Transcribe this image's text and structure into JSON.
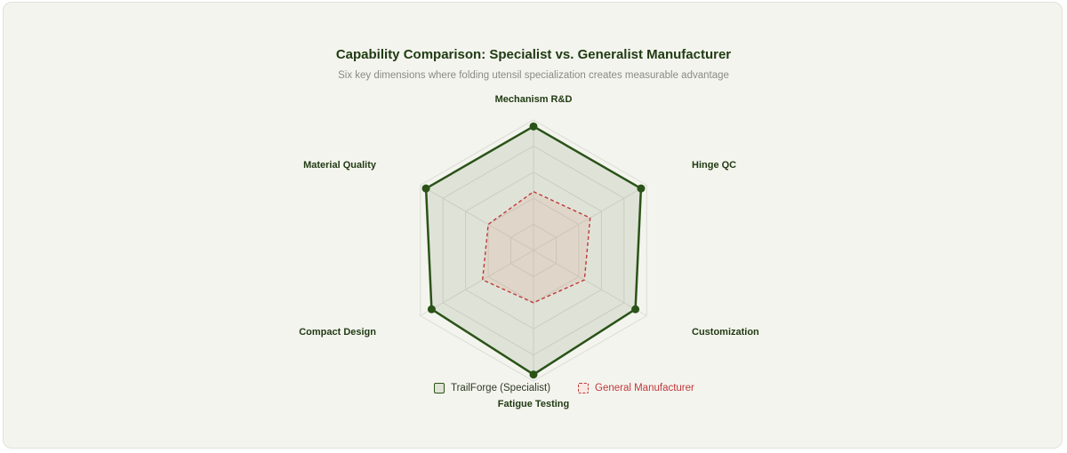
{
  "chart_data": {
    "type": "radar",
    "title": "Capability Comparison: Specialist vs. Generalist Manufacturer",
    "subtitle": "Six key dimensions where folding utensil specialization creates measurable advantage",
    "axes": [
      "Mechanism R&D",
      "Hinge QC",
      "Customization",
      "Fatigue Testing",
      "Compact Design",
      "Material Quality"
    ],
    "rmax": 10,
    "grid_levels": 5,
    "series": [
      {
        "name": "TrailForge (Specialist)",
        "values": [
          9.5,
          9.5,
          9.0,
          9.5,
          9.0,
          9.5
        ],
        "color": "#2a5318",
        "fill": "#2a5318",
        "style": "solid",
        "markers": true
      },
      {
        "name": "General Manufacturer",
        "values": [
          4.5,
          5.0,
          4.5,
          4.0,
          4.5,
          4.0
        ],
        "color": "#c0393b",
        "fill": "#e3a58f",
        "style": "dashed",
        "markers": false
      }
    ],
    "legend": "bottom-center"
  }
}
